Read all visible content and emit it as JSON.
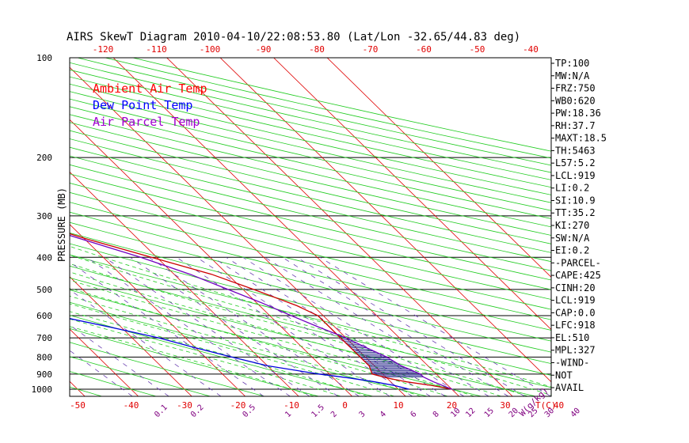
{
  "chart_data": {
    "type": "line",
    "title": "AIRS SkewT Diagram 2010-04-10/22:08:53.80 (Lat/Lon -32.65/44.83 deg)",
    "ylabel": "PRESSURE (MB)",
    "xlabel_bottom_unit": "T(C)",
    "mixing_ratio_unit": "W(g/kg)",
    "pressure_ticks": [
      100,
      200,
      300,
      400,
      500,
      600,
      700,
      800,
      900,
      1000
    ],
    "bottom_temp_ticks": [
      -50,
      -40,
      -30,
      -20,
      -10,
      0,
      10,
      20,
      30,
      40
    ],
    "top_temp_ticks": [
      -120,
      -110,
      -100,
      -90,
      -80,
      -70,
      -60,
      -50,
      -40
    ],
    "mixing_ratio_labels": [
      "0.1",
      "0.2",
      "0.5",
      "1",
      "1.5",
      "2",
      "3",
      "4",
      "6",
      "8",
      "10",
      "12",
      "15",
      "20",
      "25",
      "30",
      "40"
    ],
    "legend": [
      {
        "label": "Ambient Air Temp",
        "color": "#ff0000"
      },
      {
        "label": "Dew Point Temp",
        "color": "#0000ff"
      },
      {
        "label": "Air Parcel Temp",
        "color": "#a000d0"
      }
    ],
    "series": [
      {
        "name": "Ambient Air Temp",
        "color": "#cc0000",
        "points": [
          [
            1000,
            20
          ],
          [
            975,
            17
          ],
          [
            950,
            13
          ],
          [
            925,
            10
          ],
          [
            900,
            8
          ],
          [
            850,
            9
          ],
          [
            800,
            9
          ],
          [
            750,
            9
          ],
          [
            700,
            9
          ],
          [
            650,
            9
          ],
          [
            600,
            9
          ],
          [
            560,
            7
          ],
          [
            500,
            2
          ],
          [
            450,
            -3
          ],
          [
            400,
            -11
          ],
          [
            350,
            -20
          ],
          [
            300,
            -29
          ],
          [
            250,
            -40
          ],
          [
            200,
            -53
          ],
          [
            170,
            -61
          ],
          [
            150,
            -64
          ],
          [
            130,
            -68
          ],
          [
            110,
            -69
          ],
          [
            100,
            -70
          ]
        ]
      },
      {
        "name": "Dew Point Temp",
        "color": "#0000dd",
        "points": [
          [
            1000,
            12
          ],
          [
            975,
            10
          ],
          [
            950,
            7
          ],
          [
            925,
            3
          ],
          [
            900,
            -2
          ],
          [
            850,
            -10
          ],
          [
            800,
            -15
          ],
          [
            750,
            -20
          ],
          [
            700,
            -25
          ],
          [
            650,
            -32
          ],
          [
            600,
            -40
          ],
          [
            550,
            -42
          ],
          [
            500,
            -43
          ],
          [
            450,
            -41
          ],
          [
            400,
            -40
          ],
          [
            350,
            -41
          ],
          [
            300,
            -44
          ],
          [
            250,
            -51
          ],
          [
            200,
            -60
          ],
          [
            150,
            -71
          ],
          [
            130,
            -75
          ],
          [
            100,
            -82
          ]
        ]
      },
      {
        "name": "Air Parcel Temp",
        "color": "#7000c0",
        "points": [
          [
            1000,
            20
          ],
          [
            950,
            18
          ],
          [
            918,
            17
          ],
          [
            900,
            17
          ],
          [
            850,
            15
          ],
          [
            800,
            14
          ],
          [
            750,
            12
          ],
          [
            700,
            10
          ],
          [
            650,
            7
          ],
          [
            600,
            4
          ],
          [
            550,
            1
          ],
          [
            510,
            -2
          ],
          [
            450,
            -7
          ],
          [
            400,
            -13
          ],
          [
            350,
            -21
          ],
          [
            300,
            -30
          ],
          [
            250,
            -42
          ],
          [
            200,
            -55
          ],
          [
            150,
            -71
          ],
          [
            120,
            -83
          ],
          [
            100,
            -93
          ]
        ]
      }
    ],
    "side_panel": [
      "TP:100",
      "MW:N/A",
      "FRZ:750",
      "WB0:620",
      "PW:18.36",
      "RH:37.7",
      "MAXT:18.5",
      "TH:5463",
      "L57:5.2",
      "LCL:919",
      "LI:0.2",
      "SI:10.9",
      "TT:35.2",
      "KI:270",
      "SW:N/A",
      "EI:0.2",
      "-PARCEL-",
      "CAPE:425",
      "CINH:20",
      "LCL:919",
      "CAP:0.0",
      "LFC:918",
      "EL:510",
      "MPL:327",
      "-WIND-",
      "NOT",
      "AVAIL"
    ]
  }
}
